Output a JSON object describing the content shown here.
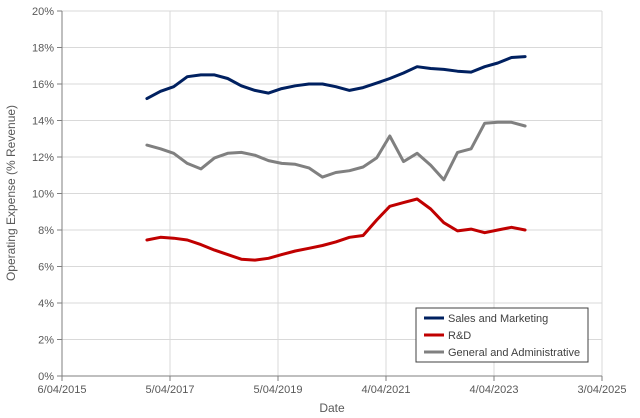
{
  "chart_data": {
    "type": "line",
    "title": "",
    "xlabel": "Date",
    "ylabel": "Operating Expense (% Revenue)",
    "x_ticks": [
      "6/04/2015",
      "5/04/2017",
      "5/04/2019",
      "4/04/2021",
      "4/04/2023",
      "3/04/2025"
    ],
    "x_range": [
      "2015-04-06",
      "2025-04-03"
    ],
    "y_ticks": [
      "0%",
      "2%",
      "4%",
      "6%",
      "8%",
      "10%",
      "12%",
      "14%",
      "16%",
      "18%",
      "20%"
    ],
    "ylim": [
      0,
      20
    ],
    "grid": true,
    "legend_position": "bottom-right",
    "series": [
      {
        "name": "Sales and Marketing",
        "color": "#002060",
        "points": [
          [
            "2016-10-31",
            15.2
          ],
          [
            "2017-01-31",
            15.6
          ],
          [
            "2017-04-30",
            15.85
          ],
          [
            "2017-07-31",
            16.4
          ],
          [
            "2017-10-31",
            16.5
          ],
          [
            "2018-01-31",
            16.5
          ],
          [
            "2018-04-30",
            16.3
          ],
          [
            "2018-07-31",
            15.9
          ],
          [
            "2018-10-31",
            15.65
          ],
          [
            "2019-01-31",
            15.5
          ],
          [
            "2019-04-30",
            15.75
          ],
          [
            "2019-07-31",
            15.9
          ],
          [
            "2019-10-31",
            16.0
          ],
          [
            "2020-01-31",
            16.0
          ],
          [
            "2020-04-30",
            15.85
          ],
          [
            "2020-07-31",
            15.65
          ],
          [
            "2020-10-31",
            15.8
          ],
          [
            "2021-01-31",
            16.05
          ],
          [
            "2021-04-30",
            16.3
          ],
          [
            "2021-07-31",
            16.6
          ],
          [
            "2021-10-31",
            16.95
          ],
          [
            "2022-01-31",
            16.85
          ],
          [
            "2022-04-30",
            16.8
          ],
          [
            "2022-07-31",
            16.7
          ],
          [
            "2022-10-31",
            16.65
          ],
          [
            "2023-01-31",
            16.95
          ],
          [
            "2023-04-30",
            17.15
          ],
          [
            "2023-07-31",
            17.45
          ],
          [
            "2023-10-31",
            17.5
          ]
        ]
      },
      {
        "name": "R&D",
        "color": "#C00000",
        "points": [
          [
            "2016-10-31",
            7.45
          ],
          [
            "2017-01-31",
            7.6
          ],
          [
            "2017-04-30",
            7.55
          ],
          [
            "2017-07-31",
            7.45
          ],
          [
            "2017-10-31",
            7.2
          ],
          [
            "2018-01-31",
            6.9
          ],
          [
            "2018-04-30",
            6.65
          ],
          [
            "2018-07-31",
            6.4
          ],
          [
            "2018-10-31",
            6.35
          ],
          [
            "2019-01-31",
            6.45
          ],
          [
            "2019-04-30",
            6.65
          ],
          [
            "2019-07-31",
            6.85
          ],
          [
            "2019-10-31",
            7.0
          ],
          [
            "2020-01-31",
            7.15
          ],
          [
            "2020-04-30",
            7.35
          ],
          [
            "2020-07-31",
            7.6
          ],
          [
            "2020-10-31",
            7.7
          ],
          [
            "2021-01-31",
            8.55
          ],
          [
            "2021-04-30",
            9.3
          ],
          [
            "2021-07-31",
            9.5
          ],
          [
            "2021-10-31",
            9.7
          ],
          [
            "2022-01-31",
            9.15
          ],
          [
            "2022-04-30",
            8.4
          ],
          [
            "2022-07-31",
            7.95
          ],
          [
            "2022-10-31",
            8.05
          ],
          [
            "2023-01-31",
            7.85
          ],
          [
            "2023-04-30",
            8.0
          ],
          [
            "2023-07-31",
            8.15
          ],
          [
            "2023-10-31",
            8.0
          ]
        ]
      },
      {
        "name": "General and Administrative",
        "color": "#808080",
        "points": [
          [
            "2016-10-31",
            12.65
          ],
          [
            "2017-01-31",
            12.45
          ],
          [
            "2017-04-30",
            12.2
          ],
          [
            "2017-07-31",
            11.65
          ],
          [
            "2017-10-31",
            11.35
          ],
          [
            "2018-01-31",
            11.95
          ],
          [
            "2018-04-30",
            12.2
          ],
          [
            "2018-07-31",
            12.25
          ],
          [
            "2018-10-31",
            12.1
          ],
          [
            "2019-01-31",
            11.8
          ],
          [
            "2019-04-30",
            11.65
          ],
          [
            "2019-07-31",
            11.6
          ],
          [
            "2019-10-31",
            11.4
          ],
          [
            "2020-01-31",
            10.9
          ],
          [
            "2020-04-30",
            11.15
          ],
          [
            "2020-07-31",
            11.25
          ],
          [
            "2020-10-31",
            11.45
          ],
          [
            "2021-01-31",
            11.95
          ],
          [
            "2021-04-30",
            13.15
          ],
          [
            "2021-07-31",
            11.75
          ],
          [
            "2021-10-31",
            12.2
          ],
          [
            "2022-01-31",
            11.55
          ],
          [
            "2022-04-30",
            10.75
          ],
          [
            "2022-07-31",
            12.25
          ],
          [
            "2022-10-31",
            12.45
          ],
          [
            "2023-01-31",
            13.85
          ],
          [
            "2023-04-30",
            13.9
          ],
          [
            "2023-07-31",
            13.9
          ],
          [
            "2023-10-31",
            13.7
          ]
        ]
      }
    ]
  }
}
